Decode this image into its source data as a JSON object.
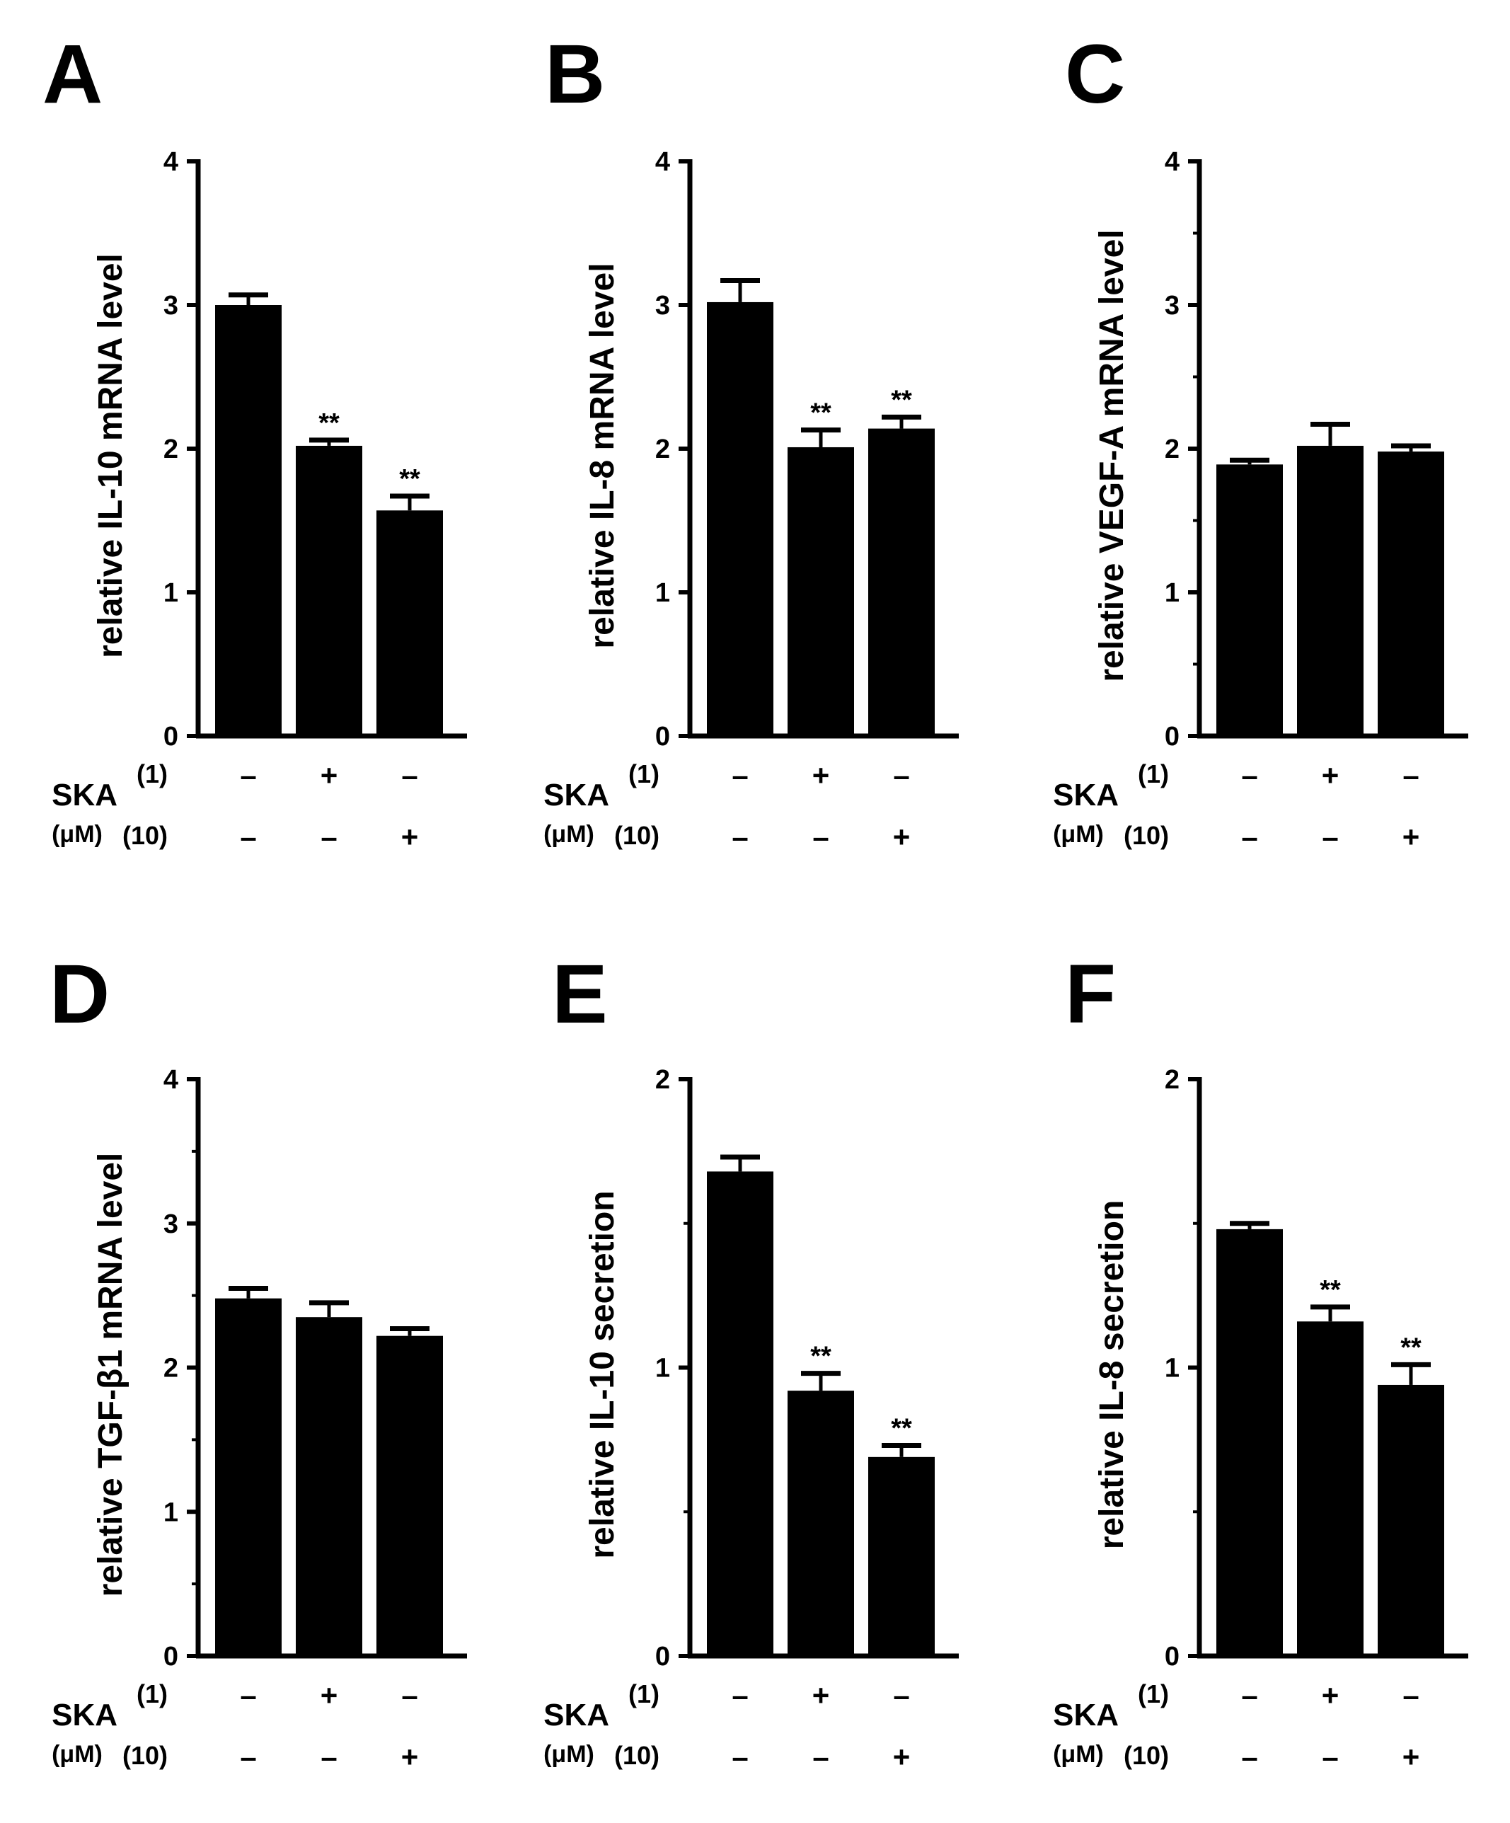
{
  "chart_data": [
    {
      "type": "bar",
      "panel": "A",
      "ylabel": "relative IL-10 mRNA level",
      "ylim": [
        0,
        4
      ],
      "yticks": [
        "0",
        "1",
        "2",
        "3",
        "4"
      ],
      "minor_ticks": false,
      "values": [
        3.0,
        2.02,
        1.57
      ],
      "errors": [
        0.07,
        0.04,
        0.1
      ],
      "significance": [
        "",
        "**",
        "**"
      ],
      "conditions": {
        "drug": "SKA",
        "unit": "(μM)",
        "dose_labels": [
          "(1)",
          "(10)"
        ],
        "row1": [
          "–",
          "+",
          "–"
        ],
        "row2": [
          "–",
          "–",
          "+"
        ]
      }
    },
    {
      "type": "bar",
      "panel": "B",
      "ylabel": "relative IL-8 mRNA level",
      "ylim": [
        0,
        4
      ],
      "yticks": [
        "0",
        "1",
        "2",
        "3",
        "4"
      ],
      "minor_ticks": false,
      "values": [
        3.02,
        2.01,
        2.14
      ],
      "errors": [
        0.15,
        0.12,
        0.08
      ],
      "significance": [
        "",
        "**",
        "**"
      ],
      "conditions": {
        "drug": "SKA",
        "unit": "(μM)",
        "dose_labels": [
          "(1)",
          "(10)"
        ],
        "row1": [
          "–",
          "+",
          "–"
        ],
        "row2": [
          "–",
          "–",
          "+"
        ]
      }
    },
    {
      "type": "bar",
      "panel": "C",
      "ylabel": "relative VEGF-A mRNA level",
      "ylim": [
        0,
        4
      ],
      "yticks": [
        "0",
        "1",
        "2",
        "3",
        "4"
      ],
      "minor_ticks": true,
      "values": [
        1.89,
        2.02,
        1.98
      ],
      "errors": [
        0.03,
        0.15,
        0.04
      ],
      "significance": [
        "",
        "",
        ""
      ],
      "conditions": {
        "drug": "SKA",
        "unit": "(μM)",
        "dose_labels": [
          "(1)",
          "(10)"
        ],
        "row1": [
          "–",
          "+",
          "–"
        ],
        "row2": [
          "–",
          "–",
          "+"
        ]
      }
    },
    {
      "type": "bar",
      "panel": "D",
      "ylabel": "relative TGF-β1 mRNA level",
      "ylim": [
        0,
        4
      ],
      "yticks": [
        "0",
        "1",
        "2",
        "3",
        "4"
      ],
      "minor_ticks": true,
      "values": [
        2.48,
        2.35,
        2.22
      ],
      "errors": [
        0.07,
        0.1,
        0.05
      ],
      "significance": [
        "",
        "",
        ""
      ],
      "conditions": {
        "drug": "SKA",
        "unit": "(μM)",
        "dose_labels": [
          "(1)",
          "(10)"
        ],
        "row1": [
          "–",
          "+",
          "–"
        ],
        "row2": [
          "–",
          "–",
          "+"
        ]
      }
    },
    {
      "type": "bar",
      "panel": "E",
      "ylabel": "relative IL-10 secretion",
      "ylim": [
        0,
        2
      ],
      "yticks": [
        "0",
        "1",
        "2"
      ],
      "minor_ticks": true,
      "values": [
        1.68,
        0.92,
        0.69
      ],
      "errors": [
        0.05,
        0.06,
        0.04
      ],
      "significance": [
        "",
        "**",
        "**"
      ],
      "conditions": {
        "drug": "SKA",
        "unit": "(μM)",
        "dose_labels": [
          "(1)",
          "(10)"
        ],
        "row1": [
          "–",
          "+",
          "–"
        ],
        "row2": [
          "–",
          "–",
          "+"
        ]
      }
    },
    {
      "type": "bar",
      "panel": "F",
      "ylabel": "relative IL-8 secretion",
      "ylim": [
        0,
        2
      ],
      "yticks": [
        "0",
        "1",
        "2"
      ],
      "minor_ticks": true,
      "values": [
        1.48,
        1.16,
        0.94
      ],
      "errors": [
        0.02,
        0.05,
        0.07
      ],
      "significance": [
        "",
        "**",
        "**"
      ],
      "conditions": {
        "drug": "SKA",
        "unit": "(μM)",
        "dose_labels": [
          "(1)",
          "(10)"
        ],
        "row1": [
          "–",
          "+",
          "–"
        ],
        "row2": [
          "–",
          "–",
          "+"
        ]
      }
    }
  ]
}
